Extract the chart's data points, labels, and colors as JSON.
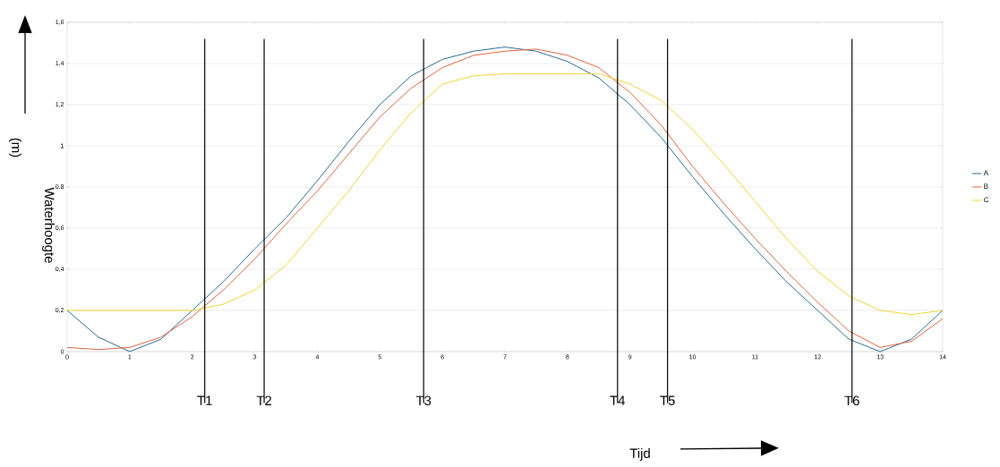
{
  "chart_data": {
    "type": "line",
    "ylabel": "Waterhoogte",
    "annotations": [
      "(m)",
      "Tijd"
    ],
    "x": [
      0,
      0.5,
      1,
      1.5,
      2,
      2.5,
      3,
      3.5,
      4,
      4.5,
      5,
      5.5,
      6,
      6.5,
      7,
      7.5,
      8,
      8.5,
      9,
      9.5,
      10,
      10.5,
      11,
      11.5,
      12,
      12.5,
      13,
      13.5,
      14
    ],
    "series": [
      {
        "name": "A",
        "color": "#2b6a94",
        "values": [
          0.2,
          0.07,
          0.0,
          0.06,
          0.2,
          0.34,
          0.5,
          0.65,
          0.83,
          1.02,
          1.2,
          1.34,
          1.42,
          1.46,
          1.48,
          1.46,
          1.41,
          1.33,
          1.2,
          1.04,
          0.85,
          0.67,
          0.5,
          0.34,
          0.2,
          0.06,
          0.0,
          0.06,
          0.2
        ]
      },
      {
        "name": "B",
        "color": "#e0643c",
        "values": [
          0.02,
          0.01,
          0.02,
          0.07,
          0.17,
          0.3,
          0.45,
          0.62,
          0.78,
          0.96,
          1.14,
          1.28,
          1.38,
          1.44,
          1.46,
          1.47,
          1.44,
          1.38,
          1.26,
          1.1,
          0.9,
          0.72,
          0.55,
          0.39,
          0.24,
          0.1,
          0.02,
          0.05,
          0.16
        ]
      },
      {
        "name": "C",
        "color": "#f0d43a",
        "values": [
          0.2,
          0.2,
          0.2,
          0.2,
          0.2,
          0.23,
          0.3,
          0.42,
          0.6,
          0.78,
          0.98,
          1.16,
          1.3,
          1.34,
          1.35,
          1.35,
          1.35,
          1.35,
          1.3,
          1.22,
          1.08,
          0.91,
          0.73,
          0.55,
          0.39,
          0.27,
          0.2,
          0.18,
          0.2
        ]
      }
    ],
    "xlim": [
      0,
      14
    ],
    "ylim": [
      0,
      1.6
    ],
    "xticks": [
      0,
      1,
      2,
      3,
      4,
      5,
      6,
      7,
      8,
      9,
      10,
      11,
      12,
      13,
      14
    ],
    "yticks": [
      0,
      {
        "value": 0.2,
        "label": "0,2"
      },
      {
        "value": 0.4,
        "label": "0,4"
      },
      {
        "value": 0.6,
        "label": "0,6"
      },
      {
        "value": 0.8,
        "label": "0,8"
      },
      1,
      {
        "value": 1.2,
        "label": "1,2"
      },
      {
        "value": 1.4,
        "label": "1,4"
      },
      {
        "value": 1.6,
        "label": "1,6"
      }
    ],
    "grid": "y",
    "legend": "right",
    "marker": "none",
    "line_style": "solid",
    "ref_lines": [
      {
        "axis": "x",
        "value": 2.2,
        "label": "T1"
      },
      {
        "axis": "x",
        "value": 3.15,
        "label": "T2"
      },
      {
        "axis": "x",
        "value": 5.7,
        "label": "T3"
      },
      {
        "axis": "x",
        "value": 8.8,
        "label": "T4"
      },
      {
        "axis": "x",
        "value": 9.6,
        "label": "T5"
      },
      {
        "axis": "x",
        "value": 12.55,
        "label": "T6"
      }
    ]
  }
}
